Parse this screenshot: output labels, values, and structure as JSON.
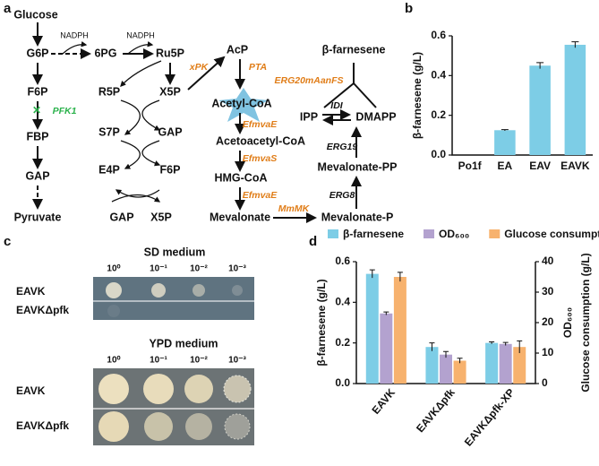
{
  "panel_labels": [
    "a",
    "b",
    "c",
    "d"
  ],
  "pathway": {
    "metabolites": [
      "Glucose",
      "G6P",
      "6PG",
      "Ru5P",
      "F6P",
      "FBP",
      "GAP",
      "Pyruvate",
      "R5P",
      "X5P",
      "S7P",
      "GAP",
      "E4P",
      "F6P",
      "GAP",
      "X5P",
      "AcP",
      "Acetyl-CoA",
      "Acetoacetyl-CoA",
      "HMG-CoA",
      "Mevalonate",
      "Mevalonate-P",
      "Mevalonate-PP",
      "IPP",
      "DMAPP",
      "β-farnesene"
    ],
    "cofactors": [
      "NADPH",
      "NADPH"
    ],
    "enzymes": [
      "PFK1",
      "xPK",
      "PTA",
      "EfmvaE",
      "EfmvaS",
      "EfmvaE",
      "MmMK",
      "ERG8",
      "ERG19",
      "IDI",
      "ERG20mAanFS"
    ]
  },
  "plates": [
    {
      "title": "SD medium",
      "dilutions": [
        "10⁰",
        "10⁻¹",
        "10⁻²",
        "10⁻³"
      ],
      "strains": [
        "EAVK",
        "EAVKΔpfk"
      ]
    },
    {
      "title": "YPD medium",
      "dilutions": [
        "10⁰",
        "10⁻¹",
        "10⁻²",
        "10⁻³"
      ],
      "strains": [
        "EAVK",
        "EAVKΔpfk"
      ]
    }
  ],
  "chart_data": [
    {
      "type": "bar",
      "ylabel": "β-farnesene (g/L)",
      "categories": [
        "Po1f",
        "EA",
        "EAV",
        "EAVK"
      ],
      "values": [
        0,
        0.125,
        0.45,
        0.555
      ],
      "errors": [
        0,
        0.003,
        0.015,
        0.015
      ],
      "color": "#7dcde6",
      "ylim": [
        0,
        0.6
      ],
      "yticks": [
        {
          "value": 0,
          "label": "0.0"
        },
        {
          "value": 0.2,
          "label": "0.2"
        },
        {
          "value": 0.4,
          "label": "0.4"
        },
        {
          "value": 0.6,
          "label": "0.6"
        }
      ]
    },
    {
      "type": "grouped_bar",
      "ylabel": "β-farnesene (g/L)",
      "y2label": [
        "OD₆₀₀",
        "Glucose consumption (g/L)"
      ],
      "categories": [
        "EAVK",
        "EAVKΔpfk",
        "EAVKΔpfk-XP"
      ],
      "series": [
        {
          "name": "β-farnesene",
          "color": "#7dcde6",
          "values": [
            0.54,
            0.18,
            0.2
          ],
          "errors": [
            0.02,
            0.02,
            0.005
          ]
        },
        {
          "name": "OD₆₀₀",
          "color": "#b3a2cf",
          "axis": "y2",
          "values": [
            23,
            9.5,
            13
          ],
          "errors": [
            0.5,
            1,
            0.5
          ]
        },
        {
          "name": "Glucose consumption",
          "color": "#f7b26e",
          "axis": "y2",
          "values": [
            35,
            7.5,
            12
          ],
          "errors": [
            1.5,
            0.8,
            2
          ]
        }
      ],
      "ylim": [
        0,
        0.6
      ],
      "yticks": [
        {
          "value": 0,
          "label": "0.0"
        },
        {
          "value": 0.2,
          "label": "0.2"
        },
        {
          "value": 0.4,
          "label": "0.4"
        },
        {
          "value": 0.6,
          "label": "0.6"
        }
      ],
      "y2lim": [
        0,
        40
      ],
      "y2ticks": [
        0,
        10,
        20,
        30,
        40
      ],
      "legend": "top"
    }
  ]
}
